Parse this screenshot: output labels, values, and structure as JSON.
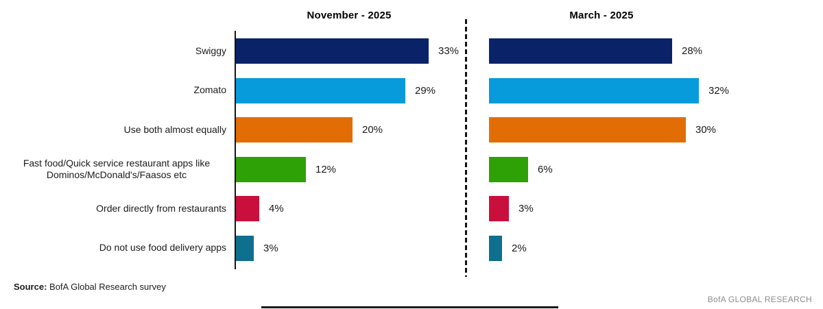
{
  "chart_data": {
    "type": "bar",
    "orientation": "horizontal",
    "title": "",
    "categories": [
      "Swiggy",
      "Zomato",
      "Use both almost equally",
      "Fast food/Quick service restaurant apps like Dominos/McDonald's/Faasos etc",
      "Order directly from restaurants",
      "Do not use food delivery apps"
    ],
    "series": [
      {
        "name": "November - 2025",
        "values": [
          33,
          29,
          20,
          12,
          4,
          3
        ]
      },
      {
        "name": "March - 2025",
        "values": [
          28,
          32,
          30,
          6,
          3,
          2
        ]
      }
    ],
    "value_labels": [
      [
        "33%",
        "29%",
        "20%",
        "12%",
        "4%",
        "3%"
      ],
      [
        "28%",
        "32%",
        "30%",
        "6%",
        "3%",
        "2%"
      ]
    ],
    "value_suffix": "%",
    "bar_colors": [
      "#0a2368",
      "#089bdc",
      "#e36d05",
      "#2da105",
      "#c9103c",
      "#0f6f8e"
    ],
    "xlim": [
      0,
      35
    ],
    "grid": false,
    "legend_position": "panel-titles-top",
    "axis_color": "#141414",
    "divider_style": "dashed-vertical"
  },
  "panels": [
    {
      "title": "November - 2025"
    },
    {
      "title": "March - 2025"
    }
  ],
  "source": {
    "label": "Source:",
    "text": " BofA Global Research survey"
  },
  "footer": {
    "brand": "BofA GLOBAL RESEARCH"
  }
}
